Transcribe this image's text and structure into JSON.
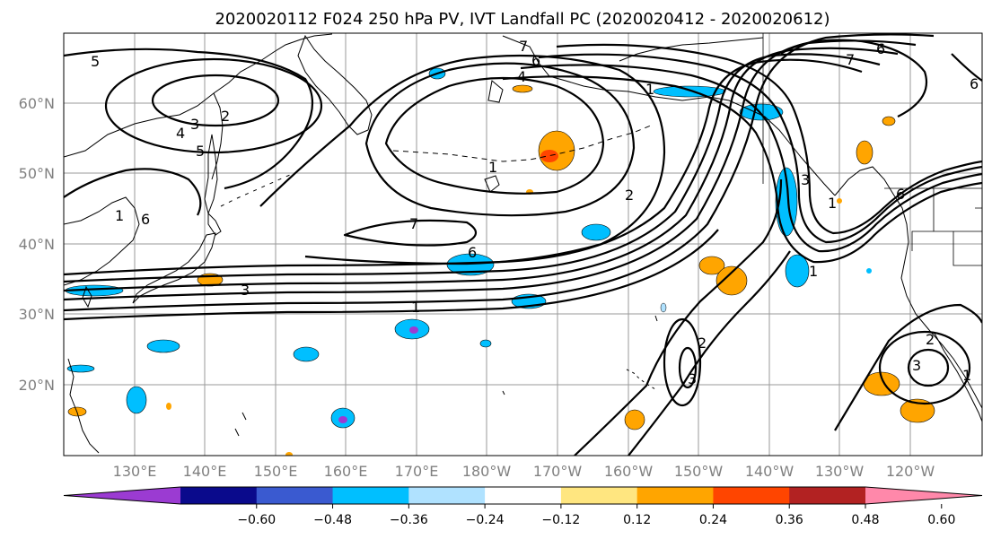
{
  "title": "2020020112 F024 250 hPa PV, IVT Landfall PC (2020020412 - 2020020612)",
  "lat_labels": [
    "60°N",
    "50°N",
    "40°N",
    "30°N",
    "20°N"
  ],
  "lon_labels": [
    "130°E",
    "140°E",
    "150°E",
    "160°E",
    "170°E",
    "180°W",
    "170°W",
    "160°W",
    "150°W",
    "140°W",
    "130°W",
    "120°W"
  ],
  "colorbar": {
    "ticks": [
      "−0.60",
      "−0.48",
      "−0.36",
      "−0.24",
      "−0.12",
      "0.12",
      "0.24",
      "0.36",
      "0.48",
      "0.60"
    ],
    "colors": [
      "#9b3bd2",
      "#0a0a8c",
      "#3a5ad0",
      "#00bfff",
      "#b0e2ff",
      "#ffffff",
      "#ffe680",
      "#ffa500",
      "#ff4500",
      "#b22222",
      "#ff88aa"
    ]
  },
  "contour_labels": [
    "5",
    "2",
    "3",
    "4",
    "5",
    "1",
    "6",
    "7",
    "6",
    "4",
    "1",
    "1",
    "7",
    "6",
    "2",
    "3",
    "1",
    "3",
    "6",
    "1",
    "1",
    "2",
    "3",
    "2",
    "3",
    "6",
    "1",
    "7",
    "6"
  ]
}
